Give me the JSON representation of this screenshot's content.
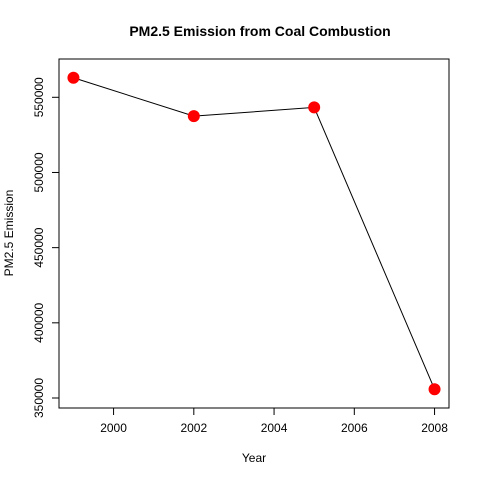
{
  "chart_data": {
    "type": "line",
    "title": "PM2.5 Emission from Coal Combustion",
    "xlabel": "Year",
    "ylabel": "PM2.5 Emission",
    "x": [
      1999,
      2002,
      2005,
      2008
    ],
    "series": [
      {
        "values": [
          562990,
          537460,
          543260,
          355820
        ],
        "line_color": "#000000",
        "marker_color": "#ff0000"
      }
    ],
    "xlim": [
      1998.64,
      2008.36
    ],
    "ylim": [
      343350,
      575470
    ],
    "x_ticks": [
      2000,
      2002,
      2004,
      2006,
      2008
    ],
    "x_tick_labels": [
      "2000",
      "2002",
      "2004",
      "2006",
      "2008"
    ],
    "y_ticks": [
      350000,
      400000,
      450000,
      500000,
      550000
    ],
    "y_tick_labels": [
      "350000",
      "400000",
      "450000",
      "500000",
      "550000"
    ],
    "grid": false,
    "legend": "none"
  }
}
